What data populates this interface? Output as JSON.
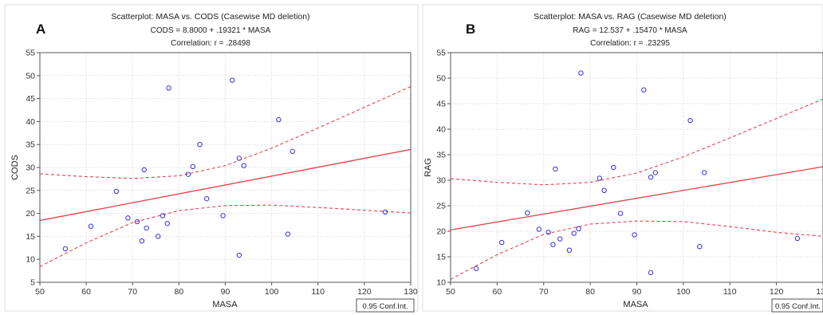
{
  "chart_data": [
    {
      "panel_label": "A",
      "type": "scatter",
      "title": "Scatterplot: MASA vs. CODS (Casewise MD deletion)",
      "equation": "CODS = 8.8000 +  .19321 * MASA",
      "correlation": "Correlation: r = .28498",
      "xlabel": "MASA",
      "ylabel": "CODS",
      "xlim": [
        50,
        130
      ],
      "ylim": [
        5,
        55
      ],
      "xticks": [
        "50",
        "60",
        "70",
        "80",
        "90",
        "100",
        "110",
        "120",
        "130"
      ],
      "yticks": [
        "5",
        "10",
        "15",
        "20",
        "25",
        "30",
        "35",
        "40",
        "45",
        "50",
        "55"
      ],
      "legend": "0.95 Conf.Int.",
      "regression": {
        "intercept": 8.8,
        "slope": 0.19321
      },
      "conf_upper": [
        [
          50,
          28.6
        ],
        [
          60,
          28
        ],
        [
          70,
          27.6
        ],
        [
          80,
          28.2
        ],
        [
          90,
          30.4
        ],
        [
          100,
          34.2
        ],
        [
          110,
          38.6
        ],
        [
          120,
          43.1
        ],
        [
          130,
          47.6
        ]
      ],
      "conf_lower": [
        [
          50,
          8.4
        ],
        [
          60,
          13.6
        ],
        [
          70,
          18
        ],
        [
          80,
          20.6
        ],
        [
          90,
          21.7
        ],
        [
          100,
          21.8
        ],
        [
          110,
          21.3
        ],
        [
          120,
          20.7
        ],
        [
          130,
          20.1
        ]
      ],
      "points": [
        [
          55.5,
          12.3
        ],
        [
          61,
          17.2
        ],
        [
          66.5,
          24.8
        ],
        [
          69,
          19
        ],
        [
          71,
          18.2
        ],
        [
          72.5,
          29.5
        ],
        [
          72,
          14
        ],
        [
          73,
          16.8
        ],
        [
          75.5,
          15
        ],
        [
          76.5,
          19.5
        ],
        [
          77.5,
          17.8
        ],
        [
          77.8,
          47.3
        ],
        [
          82,
          28.5
        ],
        [
          83,
          30.2
        ],
        [
          84.5,
          35
        ],
        [
          86,
          23.2
        ],
        [
          89.5,
          19.5
        ],
        [
          91.5,
          49
        ],
        [
          93,
          32
        ],
        [
          93,
          10.9
        ],
        [
          94,
          30.4
        ],
        [
          101.5,
          40.4
        ],
        [
          103.5,
          15.5
        ],
        [
          104.5,
          33.5
        ],
        [
          124.5,
          20.3
        ]
      ]
    },
    {
      "panel_label": "B",
      "type": "scatter",
      "title": "Scatterplot: MASA vs. RAG (Casewise MD deletion)",
      "equation": "RAG = 12.537 + .15470 * MASA",
      "correlation": "Correlation: r = .23295",
      "xlabel": "MASA",
      "ylabel": "RAG",
      "xlim": [
        50,
        130
      ],
      "ylim": [
        10,
        55
      ],
      "xticks": [
        "50",
        "60",
        "70",
        "80",
        "90",
        "100",
        "110",
        "120",
        "130"
      ],
      "yticks": [
        "10",
        "15",
        "20",
        "25",
        "30",
        "35",
        "40",
        "45",
        "50",
        "55"
      ],
      "legend": "0.95 Conf.Int.",
      "regression": {
        "intercept": 12.537,
        "slope": 0.1547
      },
      "conf_upper": [
        [
          50,
          30.3
        ],
        [
          60,
          29.6
        ],
        [
          70,
          29.1
        ],
        [
          80,
          29.6
        ],
        [
          90,
          31.4
        ],
        [
          100,
          34.6
        ],
        [
          110,
          38.3
        ],
        [
          120,
          42.1
        ],
        [
          130,
          45.9
        ]
      ],
      "conf_lower": [
        [
          50,
          10.6
        ],
        [
          60,
          15.4
        ],
        [
          70,
          19.4
        ],
        [
          80,
          21.4
        ],
        [
          90,
          22
        ],
        [
          100,
          21.9
        ],
        [
          110,
          20.9
        ],
        [
          120,
          19.8
        ],
        [
          130,
          19
        ]
      ],
      "points": [
        [
          55.5,
          12.7
        ],
        [
          61,
          17.8
        ],
        [
          66.5,
          23.6
        ],
        [
          69,
          20.4
        ],
        [
          71,
          19.8
        ],
        [
          72,
          17.4
        ],
        [
          72.5,
          32.2
        ],
        [
          73.5,
          18.5
        ],
        [
          75.5,
          16.3
        ],
        [
          76.5,
          19.6
        ],
        [
          77.5,
          20.5
        ],
        [
          78,
          51
        ],
        [
          82,
          30.4
        ],
        [
          83,
          28
        ],
        [
          85,
          32.5
        ],
        [
          86.5,
          23.5
        ],
        [
          89.5,
          19.3
        ],
        [
          91.5,
          47.7
        ],
        [
          93,
          30.6
        ],
        [
          93,
          11.9
        ],
        [
          94,
          31.5
        ],
        [
          101.5,
          41.7
        ],
        [
          103.5,
          17
        ],
        [
          104.5,
          31.5
        ],
        [
          124.5,
          18.6
        ]
      ]
    }
  ]
}
